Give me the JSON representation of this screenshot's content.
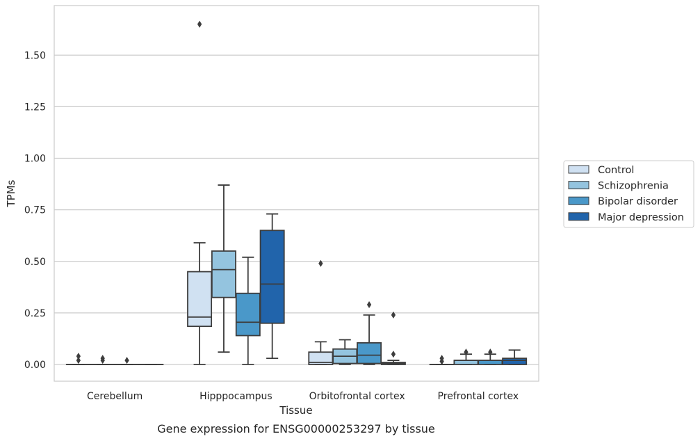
{
  "chart_data": {
    "type": "box",
    "title": "",
    "caption": "Gene expression for ENSG00000253297 by tissue",
    "xlabel": "Tissue",
    "ylabel": "TPMs",
    "ylim": [
      -0.08,
      1.72
    ],
    "yticks": [
      "0.00",
      "0.25",
      "0.50",
      "0.75",
      "1.00",
      "1.25",
      "1.50"
    ],
    "ytick_values": [
      0,
      0.25,
      0.5,
      0.75,
      1.0,
      1.25,
      1.5
    ],
    "grid": "horizontal",
    "legend_position": "right",
    "categories": [
      "Cerebellum",
      "Hipppocampus",
      "Orbitofrontal cortex",
      "Prefrontal cortex"
    ],
    "series": [
      {
        "name": "Control",
        "color": "#d0e1f2",
        "boxes": [
          {
            "q1": 0,
            "median": 0,
            "q3": 0,
            "whisker_low": 0,
            "whisker_high": 0,
            "outliers": [
              0.02,
              0.04
            ]
          },
          {
            "q1": 0.185,
            "median": 0.23,
            "q3": 0.45,
            "whisker_low": 0,
            "whisker_high": 0.59,
            "outliers": [
              1.65
            ]
          },
          {
            "q1": 0,
            "median": 0.01,
            "q3": 0.06,
            "whisker_low": 0,
            "whisker_high": 0.11,
            "outliers": [
              0.49
            ]
          },
          {
            "q1": 0,
            "median": 0,
            "q3": 0,
            "whisker_low": 0,
            "whisker_high": 0,
            "outliers": [
              0.015,
              0.03
            ]
          }
        ]
      },
      {
        "name": "Schizophrenia",
        "color": "#94c4df",
        "boxes": [
          {
            "q1": 0,
            "median": 0,
            "q3": 0,
            "whisker_low": 0,
            "whisker_high": 0,
            "outliers": [
              0.02,
              0.03
            ]
          },
          {
            "q1": 0.325,
            "median": 0.46,
            "q3": 0.55,
            "whisker_low": 0.06,
            "whisker_high": 0.87,
            "outliers": []
          },
          {
            "q1": 0.005,
            "median": 0.04,
            "q3": 0.075,
            "whisker_low": 0,
            "whisker_high": 0.12,
            "outliers": []
          },
          {
            "q1": 0,
            "median": 0.02,
            "q3": 0.02,
            "whisker_low": 0,
            "whisker_high": 0.05,
            "outliers": [
              0.06
            ]
          }
        ]
      },
      {
        "name": "Bipolar disorder",
        "color": "#4a98c9",
        "boxes": [
          {
            "q1": 0,
            "median": 0,
            "q3": 0,
            "whisker_low": 0,
            "whisker_high": 0,
            "outliers": [
              0.02
            ]
          },
          {
            "q1": 0.14,
            "median": 0.205,
            "q3": 0.345,
            "whisker_low": 0,
            "whisker_high": 0.52,
            "outliers": []
          },
          {
            "q1": 0.005,
            "median": 0.045,
            "q3": 0.105,
            "whisker_low": 0,
            "whisker_high": 0.24,
            "outliers": [
              0.29
            ]
          },
          {
            "q1": 0,
            "median": 0.02,
            "q3": 0.02,
            "whisker_low": 0,
            "whisker_high": 0.05,
            "outliers": [
              0.06
            ]
          }
        ]
      },
      {
        "name": "Major depression",
        "color": "#2164ab",
        "boxes": [
          {
            "q1": 0,
            "median": 0,
            "q3": 0,
            "whisker_low": 0,
            "whisker_high": 0,
            "outliers": []
          },
          {
            "q1": 0.2,
            "median": 0.39,
            "q3": 0.65,
            "whisker_low": 0.03,
            "whisker_high": 0.73,
            "outliers": []
          },
          {
            "q1": 0,
            "median": 0.005,
            "q3": 0.01,
            "whisker_low": 0,
            "whisker_high": 0.02,
            "outliers": [
              0.05,
              0.24
            ]
          },
          {
            "q1": 0,
            "median": 0.02,
            "q3": 0.03,
            "whisker_low": 0,
            "whisker_high": 0.07,
            "outliers": []
          }
        ]
      }
    ]
  }
}
